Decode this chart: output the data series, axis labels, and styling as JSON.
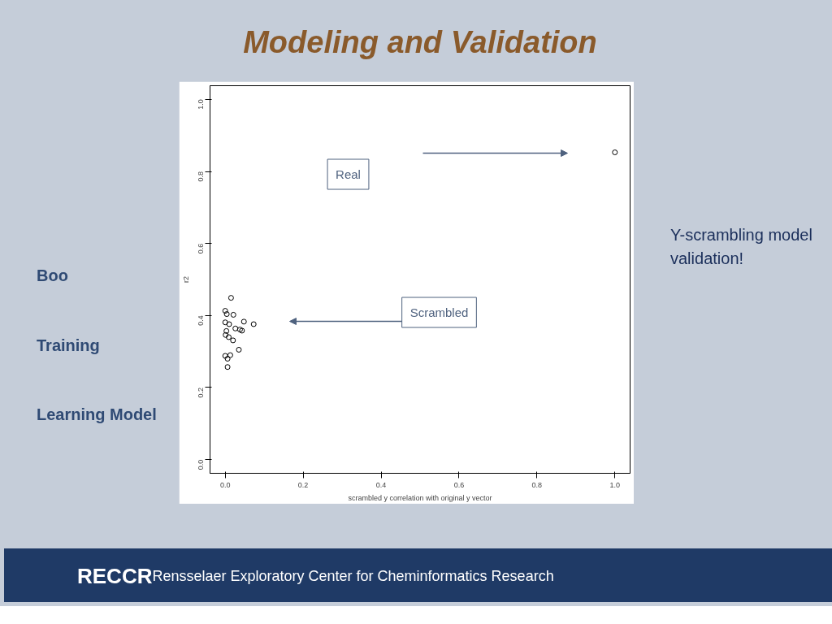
{
  "chart_data": {
    "type": "scatter",
    "title": "Modeling and Validation",
    "xlabel": "scrambled y correlation with original y vector",
    "ylabel": "r2",
    "x": [
      0.015,
      0.0,
      0.004,
      0.021,
      0.0,
      0.01,
      0.048,
      0.073,
      0.026,
      0.038,
      0.043,
      0.003,
      0.001,
      0.009,
      0.02,
      0.035,
      0.0,
      0.013,
      0.006,
      0.006,
      1.0
    ],
    "values": [
      0.449,
      0.413,
      0.404,
      0.402,
      0.381,
      0.376,
      0.383,
      0.376,
      0.364,
      0.361,
      0.358,
      0.357,
      0.346,
      0.34,
      0.331,
      0.305,
      0.288,
      0.29,
      0.28,
      0.257,
      0.853
    ],
    "color": "#000000",
    "marker": "circle",
    "grid": false,
    "xlim": [
      -0.039,
      1.039
    ],
    "ylim": [
      -0.038,
      1.038
    ],
    "xticks": [
      {
        "value": 0,
        "label": "0.0"
      },
      0.2,
      0.4,
      0.6,
      0.8,
      {
        "value": 1,
        "label": "1.0"
      }
    ],
    "yticks": [
      {
        "value": 0,
        "label": "0.0"
      },
      0.2,
      0.4,
      0.6,
      0.8,
      {
        "value": 1,
        "label": "1.0"
      }
    ],
    "annotations": [
      "Real",
      "Scrambled",
      "Y-scrambling model validation!",
      "Boo",
      "Training",
      "Learning Model",
      "RECCR",
      "Rensselaer Exploratory Center for Cheminformatics Research"
    ]
  }
}
